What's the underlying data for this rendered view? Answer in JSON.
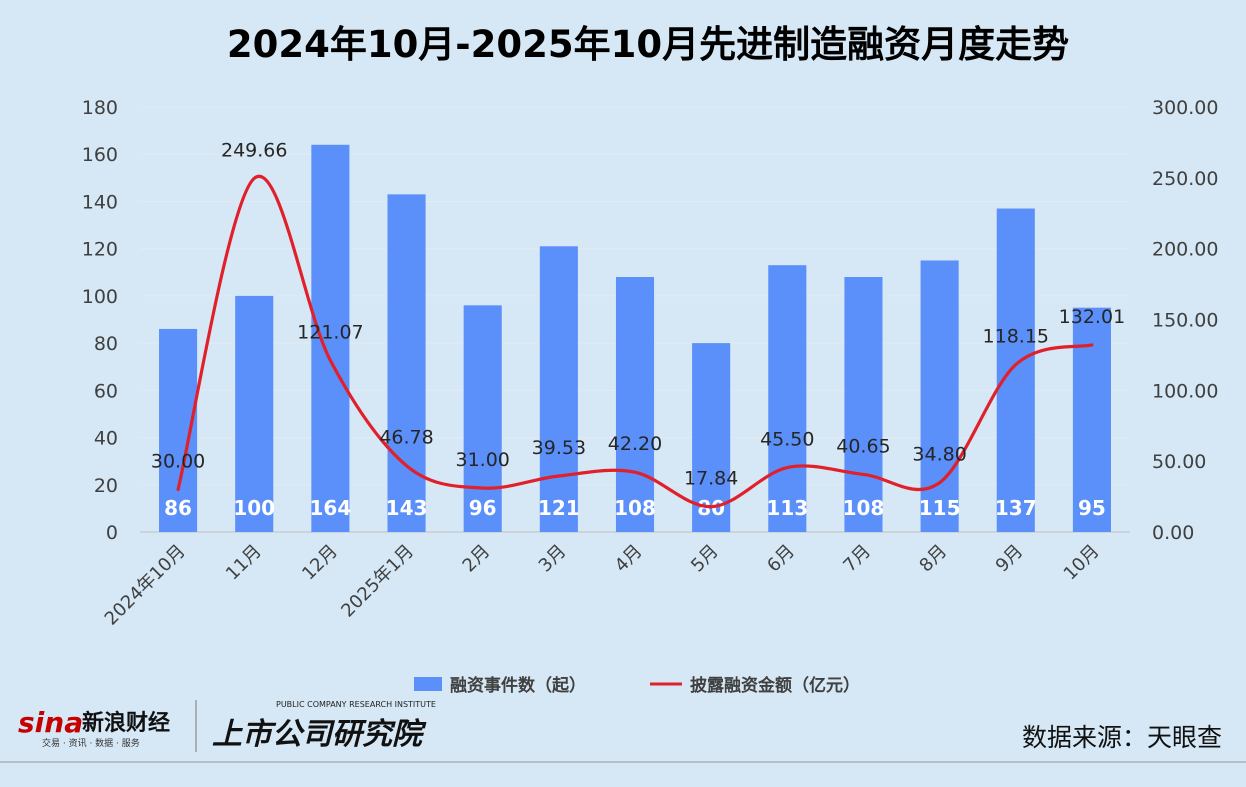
{
  "chart_data": {
    "type": "bar+line",
    "title": "2024年10月-2025年10月先进制造融资月度走势",
    "categories": [
      "2024年10月",
      "11月",
      "12月",
      "2025年1月",
      "2月",
      "3月",
      "4月",
      "5月",
      "6月",
      "7月",
      "8月",
      "9月",
      "10月"
    ],
    "series": [
      {
        "name": "融资事件数（起）",
        "type": "bar",
        "axis": "left",
        "color": "#5b8ff9",
        "values": [
          86,
          100,
          164,
          143,
          96,
          121,
          108,
          80,
          113,
          108,
          115,
          137,
          95
        ],
        "labels": [
          "86",
          "100",
          "164",
          "143",
          "96",
          "121",
          "108",
          "80",
          "113",
          "108",
          "115",
          "137",
          "95"
        ]
      },
      {
        "name": "披露融资金额（亿元）",
        "type": "line",
        "axis": "right",
        "color": "#e0202a",
        "smooth": true,
        "values": [
          30.0,
          249.66,
          121.07,
          46.78,
          31.0,
          39.53,
          42.2,
          17.84,
          45.5,
          40.65,
          34.8,
          118.15,
          132.01
        ],
        "labels": [
          "30.00",
          "249.66",
          "121.07",
          "46.78",
          "31.00",
          "39.53",
          "42.20",
          "17.84",
          "45.50",
          "40.65",
          "34.80",
          "118.15",
          "132.01"
        ]
      }
    ],
    "y_left": {
      "min": 0,
      "max": 180,
      "ticks": [
        "0",
        "20",
        "40",
        "60",
        "80",
        "100",
        "120",
        "140",
        "160",
        "180"
      ]
    },
    "y_right": {
      "min": 0,
      "max": 300,
      "ticks": [
        "0.00",
        "50.00",
        "100.00",
        "150.00",
        "200.00",
        "250.00",
        "300.00"
      ]
    },
    "grid": true,
    "legend": "bottom"
  },
  "footer": {
    "sina_logo": "sina",
    "sina_name": "新浪财经",
    "sina_tagline": "交易 · 资讯 · 数据 · 服务",
    "institute_en": "PUBLIC COMPANY RESEARCH INSTITUTE",
    "institute_cn": "上市公司研究院",
    "source": "数据来源：天眼查"
  }
}
